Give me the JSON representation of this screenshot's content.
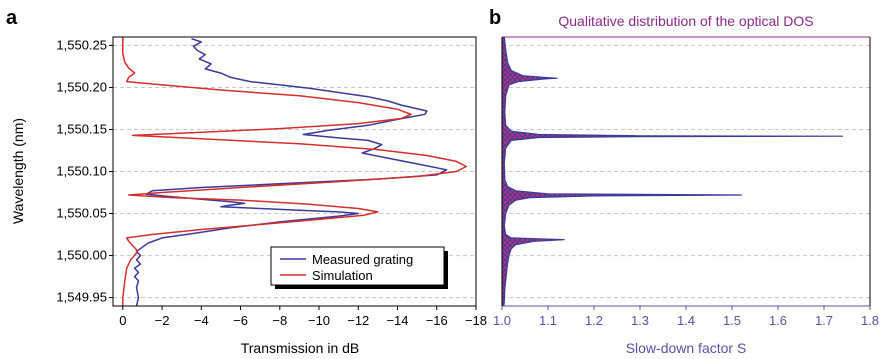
{
  "chart_data": [
    {
      "panel_label": "a",
      "type": "line",
      "xlabel": "Transmission in dB",
      "ylabel": "Wavelength (nm)",
      "xlim": [
        0.5,
        -18
      ],
      "ylim": [
        1549.94,
        1550.26
      ],
      "x_ticks": [
        0,
        -2,
        -4,
        -6,
        -8,
        -10,
        -12,
        -14,
        -16,
        -18
      ],
      "x_tick_labels": [
        "0",
        "−2",
        "−4",
        "−6",
        "−8",
        "−10",
        "−12",
        "−14",
        "−16",
        "−18"
      ],
      "y_ticks": [
        1549.95,
        1550.0,
        1550.05,
        1550.1,
        1550.15,
        1550.2,
        1550.25
      ],
      "y_tick_labels": [
        "1,549.95",
        "1,550.00",
        "1,550.05",
        "1,550.10",
        "1,550.15",
        "1,550.20",
        "1,550.25"
      ],
      "grid": "horizontal dashed",
      "legend_position": "bottom-right",
      "series": [
        {
          "name": "Measured grating",
          "color": "#3a3a9a",
          "points": [
            [
              -3.5,
              1550.258
            ],
            [
              -4.0,
              1550.254
            ],
            [
              -3.6,
              1550.249
            ],
            [
              -3.8,
              1550.244
            ],
            [
              -4.2,
              1550.239
            ],
            [
              -3.9,
              1550.234
            ],
            [
              -4.5,
              1550.228
            ],
            [
              -4.2,
              1550.222
            ],
            [
              -5.0,
              1550.217
            ],
            [
              -5.5,
              1550.212
            ],
            [
              -6.5,
              1550.207
            ],
            [
              -8.0,
              1550.203
            ],
            [
              -9.5,
              1550.199
            ],
            [
              -11.0,
              1550.194
            ],
            [
              -12.5,
              1550.189
            ],
            [
              -13.5,
              1550.184
            ],
            [
              -14.2,
              1550.179
            ],
            [
              -15.5,
              1550.172
            ],
            [
              -15.4,
              1550.168
            ],
            [
              -14.0,
              1550.162
            ],
            [
              -12.5,
              1550.155
            ],
            [
              -10.5,
              1550.149
            ],
            [
              -9.2,
              1550.144
            ],
            [
              -11.0,
              1550.14
            ],
            [
              -12.5,
              1550.137
            ],
            [
              -13.2,
              1550.132
            ],
            [
              -12.8,
              1550.127
            ],
            [
              -12.2,
              1550.122
            ],
            [
              -13.5,
              1550.116
            ],
            [
              -15.0,
              1550.109
            ],
            [
              -16.5,
              1550.102
            ],
            [
              -16.0,
              1550.096
            ],
            [
              -13.0,
              1550.091
            ],
            [
              -8.5,
              1550.086
            ],
            [
              -4.0,
              1550.081
            ],
            [
              -1.5,
              1550.077
            ],
            [
              -1.2,
              1550.073
            ],
            [
              -2.5,
              1550.07
            ],
            [
              -4.0,
              1550.067
            ],
            [
              -5.5,
              1550.064
            ],
            [
              -6.2,
              1550.062
            ],
            [
              -5.5,
              1550.06
            ],
            [
              -5.0,
              1550.058
            ],
            [
              -7.0,
              1550.056
            ],
            [
              -9.0,
              1550.054
            ],
            [
              -11.0,
              1550.052
            ],
            [
              -12.0,
              1550.05
            ],
            [
              -11.0,
              1550.047
            ],
            [
              -8.0,
              1550.04
            ],
            [
              -5.5,
              1550.033
            ],
            [
              -3.5,
              1550.026
            ],
            [
              -2.0,
              1550.021
            ],
            [
              -1.3,
              1550.015
            ],
            [
              -1.0,
              1550.01
            ],
            [
              -0.7,
              1550.005
            ],
            [
              -0.9,
              1550.0
            ],
            [
              -0.7,
              1549.995
            ],
            [
              -0.9,
              1549.99
            ],
            [
              -0.6,
              1549.985
            ],
            [
              -0.8,
              1549.98
            ],
            [
              -0.6,
              1549.975
            ],
            [
              -0.8,
              1549.97
            ],
            [
              -0.7,
              1549.962
            ],
            [
              -0.8,
              1549.95
            ],
            [
              -0.7,
              1549.94
            ]
          ]
        },
        {
          "name": "Simulation",
          "color": "#d62d2d",
          "points": [
            [
              0.0,
              1550.26
            ],
            [
              0.0,
              1550.24
            ],
            [
              -0.1,
              1550.23
            ],
            [
              -0.3,
              1550.223
            ],
            [
              -0.6,
              1550.217
            ],
            [
              -0.3,
              1550.212
            ],
            [
              -0.2,
              1550.207
            ],
            [
              -2.0,
              1550.203
            ],
            [
              -5.0,
              1550.197
            ],
            [
              -9.0,
              1550.19
            ],
            [
              -12.0,
              1550.182
            ],
            [
              -14.0,
              1550.174
            ],
            [
              -14.7,
              1550.168
            ],
            [
              -14.2,
              1550.163
            ],
            [
              -12.0,
              1550.157
            ],
            [
              -8.0,
              1550.151
            ],
            [
              -3.5,
              1550.146
            ],
            [
              -0.5,
              1550.143
            ],
            [
              -4.0,
              1550.139
            ],
            [
              -9.0,
              1550.133
            ],
            [
              -13.0,
              1550.126
            ],
            [
              -15.5,
              1550.119
            ],
            [
              -17.0,
              1550.112
            ],
            [
              -17.5,
              1550.106
            ],
            [
              -17.0,
              1550.1
            ],
            [
              -15.0,
              1550.094
            ],
            [
              -11.0,
              1550.088
            ],
            [
              -6.0,
              1550.081
            ],
            [
              -2.0,
              1550.075
            ],
            [
              -0.3,
              1550.072
            ],
            [
              -2.5,
              1550.069
            ],
            [
              -6.0,
              1550.066
            ],
            [
              -9.5,
              1550.061
            ],
            [
              -12.0,
              1550.056
            ],
            [
              -13.0,
              1550.052
            ],
            [
              -12.3,
              1550.048
            ],
            [
              -10.0,
              1550.043
            ],
            [
              -7.0,
              1550.037
            ],
            [
              -4.0,
              1550.031
            ],
            [
              -1.5,
              1550.025
            ],
            [
              -0.2,
              1550.021
            ],
            [
              -0.3,
              1550.017
            ],
            [
              -0.5,
              1550.012
            ],
            [
              -0.7,
              1550.007
            ],
            [
              -0.7,
              1550.003
            ],
            [
              -0.4,
              1549.995
            ],
            [
              -0.2,
              1549.985
            ],
            [
              -0.1,
              1549.97
            ],
            [
              0.0,
              1549.95
            ],
            [
              0.0,
              1549.94
            ]
          ]
        }
      ]
    },
    {
      "panel_label": "b",
      "type": "area",
      "title": "Qualitative distribution of the optical DOS",
      "xlabel": "Slow-down factor S",
      "xlim": [
        1.0,
        1.8
      ],
      "ylim": [
        1549.94,
        1550.26
      ],
      "x_ticks": [
        1.0,
        1.1,
        1.2,
        1.3,
        1.4,
        1.5,
        1.6,
        1.7,
        1.8
      ],
      "x_tick_labels": [
        "1.0",
        "1.1",
        "1.2",
        "1.3",
        "1.4",
        "1.5",
        "1.6",
        "1.7",
        "1.8"
      ],
      "grid": "horizontal dashed",
      "fill_color": "#b0357e",
      "line_color": "#3a3a9a",
      "series": [
        {
          "points": [
            [
              1.005,
              1550.26
            ],
            [
              1.008,
              1550.245
            ],
            [
              1.012,
              1550.23
            ],
            [
              1.02,
              1550.22
            ],
            [
              1.045,
              1550.214
            ],
            [
              1.09,
              1550.212
            ],
            [
              1.12,
              1550.211
            ],
            [
              1.09,
              1550.21
            ],
            [
              1.035,
              1550.207
            ],
            [
              1.015,
              1550.203
            ],
            [
              1.008,
              1550.19
            ],
            [
              1.006,
              1550.17
            ],
            [
              1.008,
              1550.155
            ],
            [
              1.02,
              1550.148
            ],
            [
              1.08,
              1550.144
            ],
            [
              1.3,
              1550.1425
            ],
            [
              1.74,
              1550.142
            ],
            [
              1.3,
              1550.1415
            ],
            [
              1.08,
              1550.1405
            ],
            [
              1.02,
              1550.137
            ],
            [
              1.008,
              1550.128
            ],
            [
              1.005,
              1550.11
            ],
            [
              1.006,
              1550.09
            ],
            [
              1.012,
              1550.082
            ],
            [
              1.03,
              1550.077
            ],
            [
              1.1,
              1550.0735
            ],
            [
              1.52,
              1550.072
            ],
            [
              1.2,
              1550.071
            ],
            [
              1.06,
              1550.069
            ],
            [
              1.03,
              1550.066
            ],
            [
              1.015,
              1550.06
            ],
            [
              1.008,
              1550.05
            ],
            [
              1.005,
              1550.035
            ],
            [
              1.008,
              1550.025
            ],
            [
              1.02,
              1550.021
            ],
            [
              1.08,
              1550.02
            ],
            [
              1.135,
              1550.019
            ],
            [
              1.07,
              1550.017
            ],
            [
              1.03,
              1550.013
            ],
            [
              1.02,
              1550.008
            ],
            [
              1.015,
              1550.0
            ],
            [
              1.012,
              1549.99
            ],
            [
              1.01,
              1549.98
            ],
            [
              1.008,
              1549.97
            ],
            [
              1.006,
              1549.96
            ],
            [
              1.005,
              1549.945
            ],
            [
              1.004,
              1549.94
            ]
          ]
        }
      ]
    }
  ]
}
